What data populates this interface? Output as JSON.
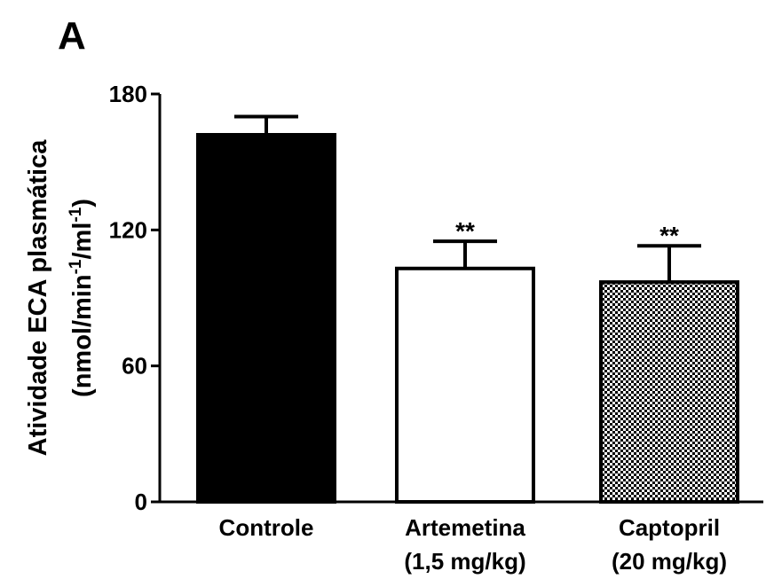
{
  "chart_data": {
    "type": "bar",
    "panel_label": "A",
    "ylabel": "Atividade ECA plasmática",
    "ylabel_units": [
      "(nmol/min",
      "-1",
      "/ml",
      "-1",
      ")"
    ],
    "categories": [
      [
        "Controle"
      ],
      [
        "Artemetina",
        "(1,5 mg/kg)"
      ],
      [
        "Captopril",
        "(20 mg/kg)"
      ]
    ],
    "values": [
      162,
      103,
      97
    ],
    "errors": [
      8,
      12,
      16
    ],
    "value_annotations": [
      null,
      "**",
      "**"
    ],
    "fills": [
      "#000000",
      "#ffffff",
      "checker"
    ],
    "ylim": [
      0,
      180
    ],
    "yticks": [
      0,
      60,
      120,
      180
    ]
  }
}
